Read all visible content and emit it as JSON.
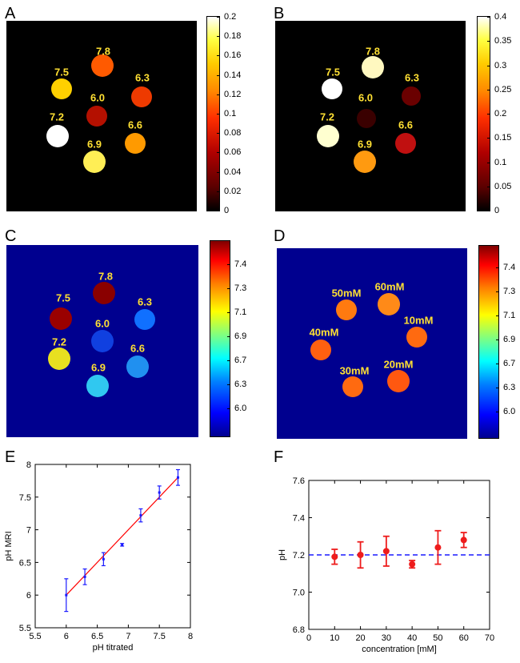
{
  "panels": {
    "A": {
      "letter": "A",
      "spots": [
        {
          "label": "7.8",
          "color": "#ff5a00"
        },
        {
          "label": "7.5",
          "color": "#ffd000"
        },
        {
          "label": "6.3",
          "color": "#ee3a00"
        },
        {
          "label": "6.0",
          "color": "#b41000"
        },
        {
          "label": "7.2",
          "color": "#ffffff"
        },
        {
          "label": "6.6",
          "color": "#ff9a00"
        },
        {
          "label": "6.9",
          "color": "#ffee55"
        }
      ],
      "colorbar": {
        "ticks": [
          "0.2",
          "0.18",
          "0.16",
          "0.14",
          "0.12",
          "0.1",
          "0.08",
          "0.06",
          "0.04",
          "0.02",
          "0"
        ]
      }
    },
    "B": {
      "letter": "B",
      "spots": [
        {
          "label": "7.8",
          "color": "#fff8c0"
        },
        {
          "label": "7.5",
          "color": "#ffffff"
        },
        {
          "label": "6.3",
          "color": "#6a0000"
        },
        {
          "label": "6.0",
          "color": "#3a0000"
        },
        {
          "label": "7.2",
          "color": "#ffffd0"
        },
        {
          "label": "6.6",
          "color": "#c01010"
        },
        {
          "label": "6.9",
          "color": "#ff9a10"
        }
      ],
      "colorbar": {
        "ticks": [
          "0.4",
          "0.35",
          "0.3",
          "0.25",
          "0.2",
          "0.15",
          "0.1",
          "0.05",
          "0"
        ]
      }
    },
    "C": {
      "letter": "C",
      "spots": [
        {
          "label": "7.8",
          "color": "#8a0000"
        },
        {
          "label": "7.5",
          "color": "#9a0000"
        },
        {
          "label": "6.3",
          "color": "#1070ff"
        },
        {
          "label": "6.0",
          "color": "#1040e0"
        },
        {
          "label": "7.2",
          "color": "#e8e020"
        },
        {
          "label": "6.6",
          "color": "#2090f0"
        },
        {
          "label": "6.9",
          "color": "#30c8f0"
        }
      ],
      "colorbar": {
        "ticks": [
          "7.4",
          "7.3",
          "7.1",
          "6.9",
          "6.7",
          "6.3",
          "6.0"
        ]
      }
    },
    "D": {
      "letter": "D",
      "spots": [
        {
          "label": "50mM",
          "color": "#ff7a10"
        },
        {
          "label": "60mM",
          "color": "#ff8a18"
        },
        {
          "label": "40mM",
          "color": "#ff6010"
        },
        {
          "label": "10mM",
          "color": "#ff6a10"
        },
        {
          "label": "30mM",
          "color": "#ff6a10"
        },
        {
          "label": "20mM",
          "color": "#ff5810"
        }
      ],
      "colorbar": {
        "ticks": [
          "7.4",
          "7.3",
          "7.1",
          "6.9",
          "6.7",
          "6.3",
          "6.0"
        ]
      }
    }
  },
  "chart_data": [
    {
      "panel": "E",
      "type": "scatter",
      "xlabel": "pH titrated",
      "ylabel": "pH MRI",
      "xlim": [
        5.5,
        8
      ],
      "ylim": [
        5.5,
        8
      ],
      "xticks": [
        "5.5",
        "6",
        "6.5",
        "7",
        "7.5",
        "8"
      ],
      "yticks": [
        "5.5",
        "6",
        "6.5",
        "7",
        "7.5",
        "8"
      ],
      "series": [
        {
          "x": [
            6.0,
            6.3,
            6.6,
            6.9,
            7.2,
            7.5,
            7.8
          ],
          "y": [
            6.0,
            6.28,
            6.55,
            6.77,
            7.22,
            7.57,
            7.8
          ],
          "err": [
            0.25,
            0.12,
            0.1,
            0.02,
            0.1,
            0.1,
            0.12
          ],
          "color": "#1a1aff"
        }
      ],
      "fit_line": {
        "x": [
          6.0,
          7.8
        ],
        "y": [
          6.0,
          7.8
        ],
        "color": "#ff0000"
      },
      "grid": false
    },
    {
      "panel": "F",
      "type": "scatter",
      "xlabel": "concentration [mM]",
      "ylabel": "pH",
      "xlim": [
        0,
        70
      ],
      "ylim": [
        6.8,
        7.6
      ],
      "xticks": [
        "0",
        "10",
        "20",
        "30",
        "40",
        "50",
        "60",
        "70"
      ],
      "yticks": [
        "6.8",
        "7.0",
        "7.2",
        "7.4",
        "7.6"
      ],
      "series": [
        {
          "x": [
            10,
            20,
            30,
            40,
            50,
            60
          ],
          "y": [
            7.19,
            7.2,
            7.22,
            7.15,
            7.24,
            7.28
          ],
          "err": [
            0.04,
            0.07,
            0.08,
            0.02,
            0.09,
            0.04
          ],
          "color": "#ee1c1c"
        }
      ],
      "reference_line": {
        "y": 7.2,
        "color": "#1a1aff",
        "style": "dashed"
      },
      "grid": false
    }
  ]
}
